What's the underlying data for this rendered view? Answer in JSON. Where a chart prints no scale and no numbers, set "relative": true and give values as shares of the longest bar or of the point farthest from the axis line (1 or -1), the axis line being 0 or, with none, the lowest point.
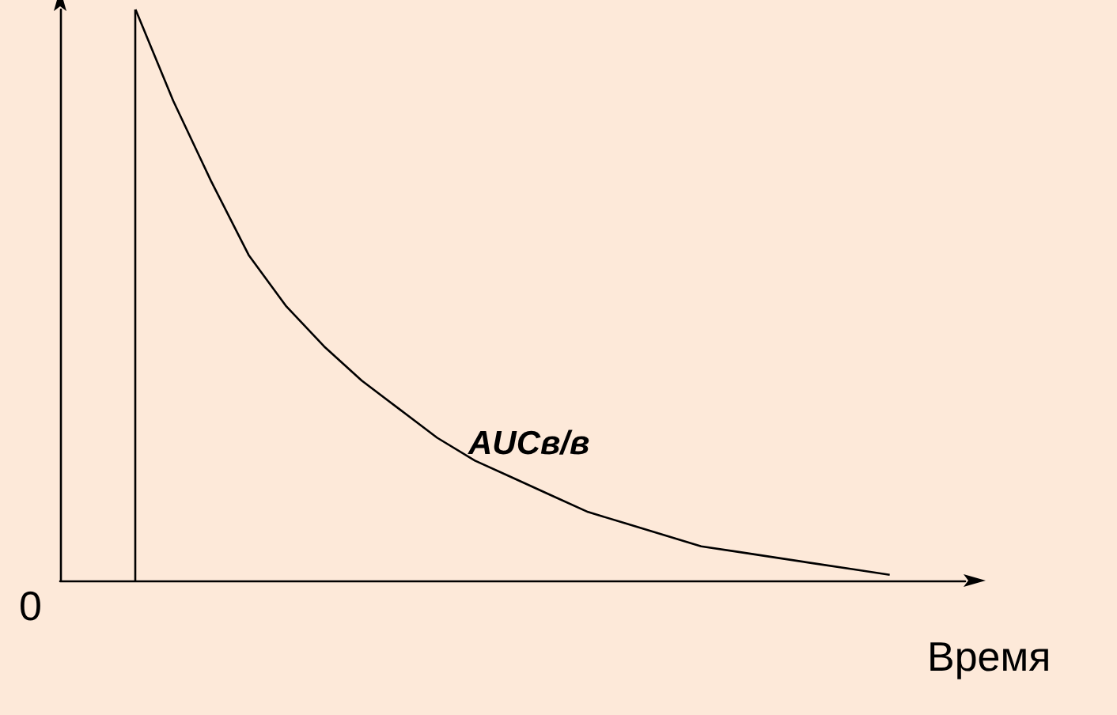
{
  "chart_data": {
    "type": "line",
    "relative": true,
    "xlabel": "Время",
    "annotations": [
      "0",
      "AUCв/в"
    ],
    "categories": [
      null,
      null,
      null,
      null,
      null,
      null,
      null,
      null,
      null,
      null,
      null,
      null,
      null,
      null,
      null,
      null,
      null,
      null,
      null,
      null,
      null,
      null,
      null,
      null,
      null
    ],
    "series": [
      {
        "color": "#000000",
        "values": [
          null,
          null,
          1.0,
          0.84,
          0.7,
          0.57,
          0.48,
          0.41,
          0.35,
          0.3,
          0.25,
          0.21,
          0.18,
          0.15,
          0.12,
          0.1,
          0.08,
          0.06,
          0.05,
          0.04,
          0.03,
          0.02,
          0.01,
          null,
          null
        ]
      }
    ],
    "grid": false,
    "marker": "none",
    "line_style": "solid"
  }
}
